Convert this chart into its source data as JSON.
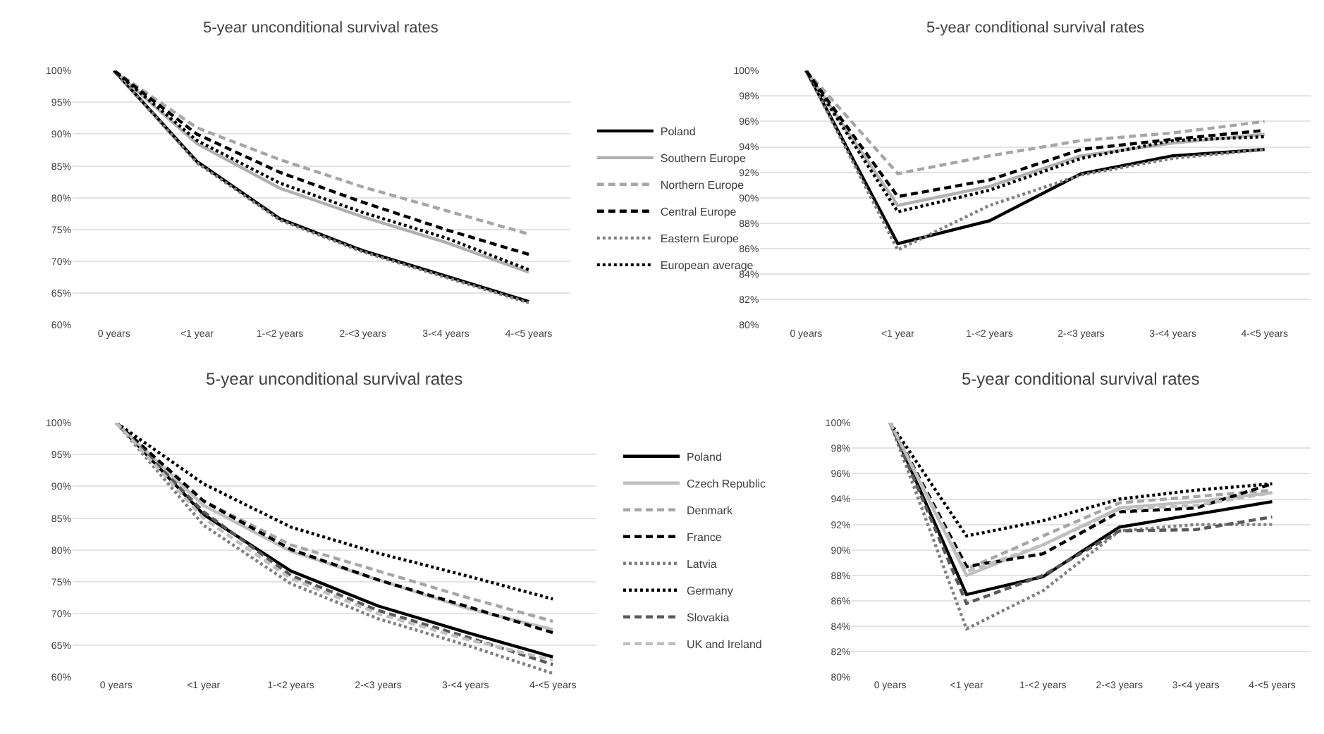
{
  "chart_data": [
    {
      "type": "line",
      "title": "5-year unconditional survival rates",
      "categories": [
        "0 years",
        "<1 year",
        "1-<2 years",
        "2-<3 years",
        "3-<4 years",
        "4-<5 years"
      ],
      "ylim": [
        60,
        100
      ],
      "yticks": [
        {
          "value": 60,
          "label": "60%"
        },
        {
          "value": 65,
          "label": "65%"
        },
        {
          "value": 70,
          "label": "70%"
        },
        {
          "value": 75,
          "label": "75%"
        },
        {
          "value": 80,
          "label": "80%"
        },
        {
          "value": 85,
          "label": "85%"
        },
        {
          "value": 90,
          "label": "90%"
        },
        {
          "value": 95,
          "label": "95%"
        },
        {
          "value": 100,
          "label": "100%"
        }
      ],
      "grid": "y",
      "legend": "right",
      "marker": "none",
      "series": [
        {
          "name": "Poland",
          "color": "#000000",
          "line_style": "solid",
          "values": [
            100,
            85.7,
            76.7,
            71.7,
            67.7,
            63.7
          ]
        },
        {
          "name": "Southern Europe",
          "color": "#b0b0b0",
          "line_style": "solid",
          "values": [
            100,
            88.5,
            81.5,
            77,
            73,
            68.3
          ]
        },
        {
          "name": "Northern Europe",
          "color": "#a6a6a6",
          "line_style": "dashed",
          "values": [
            100,
            91,
            86,
            81.7,
            78,
            74.3
          ]
        },
        {
          "name": "Central Europe",
          "color": "#000000",
          "line_style": "dashed",
          "values": [
            100,
            90,
            84,
            79.3,
            75,
            71.1
          ]
        },
        {
          "name": "Eastern Europe",
          "color": "#808080",
          "line_style": "dotted",
          "values": [
            100,
            85.5,
            76.5,
            71.5,
            67.5,
            63.5
          ]
        },
        {
          "name": "European average",
          "color": "#000000",
          "line_style": "dotted",
          "values": [
            100,
            89,
            82.3,
            77.7,
            73.7,
            68.7
          ]
        }
      ]
    },
    {
      "type": "line",
      "title": "5-year conditional survival rates",
      "categories": [
        "0 years",
        "<1 year",
        "1-<2 years",
        "2-<3 years",
        "3-<4 years",
        "4-<5 years"
      ],
      "ylim": [
        80,
        100
      ],
      "yticks": [
        {
          "value": 80,
          "label": "80%"
        },
        {
          "value": 82,
          "label": "82%"
        },
        {
          "value": 84,
          "label": "84%"
        },
        {
          "value": 86,
          "label": "86%"
        },
        {
          "value": 88,
          "label": "88%"
        },
        {
          "value": 90,
          "label": "90%"
        },
        {
          "value": 92,
          "label": "92%"
        },
        {
          "value": 94,
          "label": "94%"
        },
        {
          "value": 96,
          "label": "96%"
        },
        {
          "value": 98,
          "label": "98%"
        },
        {
          "value": 100,
          "label": "100%"
        }
      ],
      "grid": "y",
      "marker": "none",
      "series": [
        {
          "color": "#000000",
          "line_style": "solid",
          "values": [
            100,
            86.4,
            88.2,
            91.9,
            93.3,
            93.8
          ]
        },
        {
          "color": "#b0b0b0",
          "line_style": "solid",
          "values": [
            100,
            89.4,
            90.9,
            93.3,
            94.3,
            95
          ]
        },
        {
          "color": "#a6a6a6",
          "line_style": "dashed",
          "values": [
            100,
            91.9,
            93.3,
            94.5,
            95.1,
            96
          ]
        },
        {
          "color": "#000000",
          "line_style": "dashed",
          "values": [
            100,
            90.1,
            91.4,
            93.8,
            94.6,
            95.3
          ]
        },
        {
          "color": "#808080",
          "line_style": "dotted",
          "values": [
            100,
            85.9,
            89.4,
            91.8,
            93.1,
            93.8
          ]
        },
        {
          "color": "#000000",
          "line_style": "dotted",
          "values": [
            100,
            88.9,
            90.6,
            93.1,
            94.5,
            94.8
          ]
        }
      ]
    },
    {
      "type": "line",
      "title": "5-year unconditional survival rates",
      "categories": [
        "0 years",
        "<1 year",
        "1-<2 years",
        "2-<3 years",
        "3-<4 years",
        "4-<5 years"
      ],
      "ylim": [
        60,
        100
      ],
      "yticks": [
        {
          "value": 60,
          "label": "60%"
        },
        {
          "value": 65,
          "label": "65%"
        },
        {
          "value": 70,
          "label": "70%"
        },
        {
          "value": 75,
          "label": "75%"
        },
        {
          "value": 80,
          "label": "80%"
        },
        {
          "value": 85,
          "label": "85%"
        },
        {
          "value": 90,
          "label": "90%"
        },
        {
          "value": 95,
          "label": "95%"
        },
        {
          "value": 100,
          "label": "100%"
        }
      ],
      "grid": "y",
      "legend": "right",
      "marker": "none",
      "series": [
        {
          "name": "Poland",
          "color": "#000000",
          "line_style": "solid",
          "values": [
            100,
            85.6,
            76.7,
            71.2,
            67.1,
            63.2
          ]
        },
        {
          "name": "Czech Republic",
          "color": "#bfbfbf",
          "line_style": "solid",
          "values": [
            100,
            87,
            79.8,
            75.3,
            70.9,
            67.5
          ]
        },
        {
          "name": "Denmark",
          "color": "#a6a6a6",
          "line_style": "dashed",
          "values": [
            100,
            87.7,
            80.8,
            76.7,
            72.6,
            68.8
          ]
        },
        {
          "name": "France",
          "color": "#000000",
          "line_style": "dashed",
          "values": [
            100,
            87.7,
            80.1,
            75.3,
            71.2,
            67
          ]
        },
        {
          "name": "Latvia",
          "color": "#808080",
          "line_style": "dotted",
          "values": [
            100,
            83.9,
            74.7,
            69.2,
            65.1,
            60.6
          ]
        },
        {
          "name": "Germany",
          "color": "#000000",
          "line_style": "dotted",
          "values": [
            100,
            90.4,
            83.6,
            79.5,
            76,
            72.3
          ]
        },
        {
          "name": "Slovakia",
          "color": "#595959",
          "line_style": "dashed",
          "values": [
            100,
            86,
            76,
            70.5,
            66.4,
            62
          ]
        },
        {
          "name": "UK and Ireland",
          "color": "#bfbfbf",
          "line_style": "dashed",
          "values": [
            100,
            85,
            75.5,
            70,
            66,
            62.7
          ]
        }
      ]
    },
    {
      "type": "line",
      "title": "5-year conditional survival rates",
      "categories": [
        "0 years",
        "<1 year",
        "1-<2 years",
        "2-<3 years",
        "3-<4 years",
        "4-<5 years"
      ],
      "ylim": [
        80,
        100
      ],
      "yticks": [
        {
          "value": 80,
          "label": "80%"
        },
        {
          "value": 82,
          "label": "82%"
        },
        {
          "value": 84,
          "label": "84%"
        },
        {
          "value": 86,
          "label": "86%"
        },
        {
          "value": 88,
          "label": "88%"
        },
        {
          "value": 90,
          "label": "90%"
        },
        {
          "value": 92,
          "label": "92%"
        },
        {
          "value": 94,
          "label": "94%"
        },
        {
          "value": 96,
          "label": "96%"
        },
        {
          "value": 98,
          "label": "98%"
        },
        {
          "value": 100,
          "label": "100%"
        }
      ],
      "grid": "y",
      "marker": "none",
      "series": [
        {
          "color": "#000000",
          "line_style": "solid",
          "values": [
            100,
            86.5,
            87.9,
            91.8,
            92.8,
            93.8
          ]
        },
        {
          "color": "#bfbfbf",
          "line_style": "solid",
          "values": [
            100,
            88,
            90.4,
            93.3,
            93.8,
            94.5
          ]
        },
        {
          "color": "#a6a6a6",
          "line_style": "dashed",
          "values": [
            100,
            88.5,
            91.1,
            93.7,
            94.2,
            94.7
          ]
        },
        {
          "color": "#000000",
          "line_style": "dashed",
          "values": [
            100,
            88.7,
            89.7,
            93,
            93.3,
            95.2
          ]
        },
        {
          "color": "#808080",
          "line_style": "dotted",
          "values": [
            100,
            83.8,
            86.8,
            91.5,
            92,
            92
          ]
        },
        {
          "color": "#000000",
          "line_style": "dotted",
          "values": [
            100,
            91.1,
            92.3,
            94,
            94.7,
            95.2
          ]
        },
        {
          "color": "#595959",
          "line_style": "dashed",
          "values": [
            100,
            85.8,
            88,
            91.5,
            91.6,
            92.6
          ]
        },
        {
          "color": "#bfbfbf",
          "line_style": "dashed",
          "values": [
            100,
            88.3,
            90.4,
            93.2,
            93.5,
            94.5
          ]
        }
      ]
    }
  ]
}
